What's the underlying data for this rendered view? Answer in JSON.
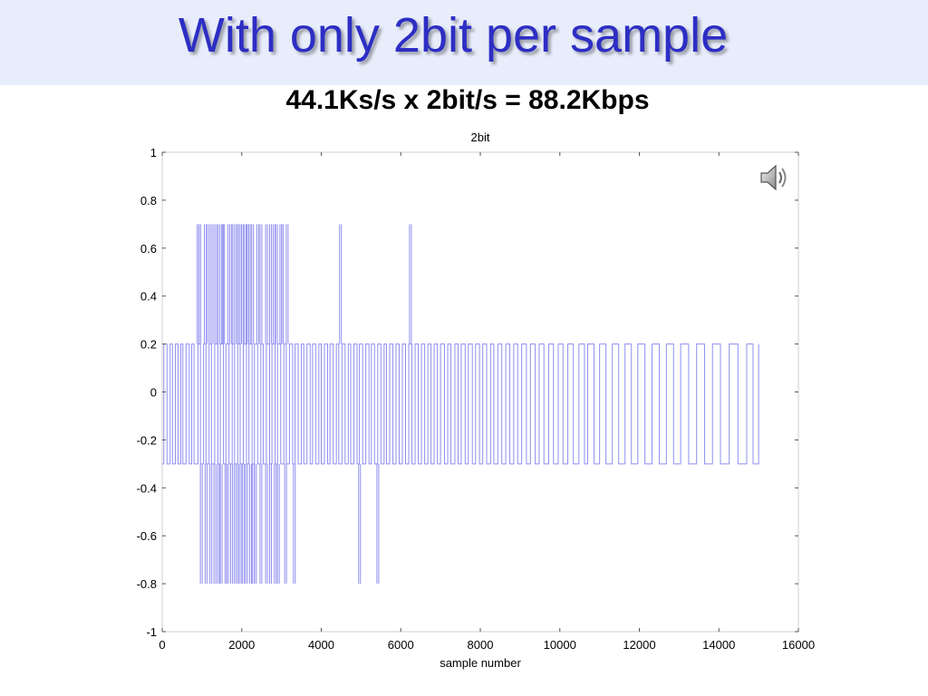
{
  "slide": {
    "title": "With only 2bit per sample",
    "subtitle": "44.1Ks/s x 2bit/s = 88.2Kbps",
    "banner_color": "#e8edfb",
    "title_color": "#2d2ec4"
  },
  "speaker": {
    "icon": "speaker-icon"
  },
  "chart_data": {
    "type": "line",
    "title": "2bit",
    "xlabel": "sample number",
    "ylabel": "",
    "xlim": [
      0,
      16000
    ],
    "ylim": [
      -1,
      1
    ],
    "xticks": [
      0,
      2000,
      4000,
      6000,
      8000,
      10000,
      12000,
      14000,
      16000
    ],
    "xtick_labels": [
      "0",
      "2000",
      "4000",
      "6000",
      "8000",
      "10000",
      "12000",
      "14000",
      "16000"
    ],
    "yticks": [
      1,
      0.8,
      0.6,
      0.4,
      0.2,
      0,
      -0.2,
      -0.4,
      -0.6,
      -0.8,
      -1
    ],
    "ytick_labels": [
      "1",
      "0.8",
      "0.6",
      "0.4",
      "0.2",
      "0",
      "-0.2",
      "-0.4",
      "-0.6",
      "-0.8",
      "-1"
    ],
    "grid": false,
    "series_color": "#8f8ff0",
    "quantization_levels": [
      0.7,
      0.2,
      -0.3,
      -0.8
    ],
    "series": [
      {
        "x_start": 0,
        "x_end": 15000,
        "baseline_high": 0.2,
        "baseline_low": -0.3,
        "transitions_x": [
          40,
          120,
          200,
          260,
          330,
          400,
          470,
          520,
          600,
          680,
          740,
          800,
          900,
          960,
          1040,
          1100,
          1180,
          1240,
          1320,
          1400,
          1460,
          1540,
          1600,
          1680,
          1760,
          1820,
          1900,
          1960,
          2040,
          2120,
          2180,
          2260,
          2320,
          2400,
          2480,
          2540,
          2620,
          2700,
          2760,
          2840,
          2900,
          2980,
          3060,
          3120,
          3200,
          3280,
          3340,
          3420,
          3500,
          3560,
          3640,
          3720,
          3780,
          3860,
          3940,
          4000,
          4080,
          4160,
          4220,
          4300,
          4380,
          4440,
          4520,
          4600,
          4680,
          4740,
          4820,
          4900,
          4960,
          5040,
          5120,
          5200,
          5260,
          5340,
          5420,
          5500,
          5580,
          5640,
          5720,
          5800,
          5880,
          5960,
          6040,
          6120,
          6200,
          6280,
          6360,
          6440,
          6520,
          6600,
          6680,
          6760,
          6840,
          6920,
          7000,
          7100,
          7180,
          7260,
          7360,
          7440,
          7520,
          7620,
          7700,
          7800,
          7880,
          7980,
          8060,
          8160,
          8260,
          8340,
          8440,
          8540,
          8640,
          8740,
          8840,
          8940,
          9040,
          9160,
          9260,
          9380,
          9480,
          9600,
          9720,
          9840,
          9960,
          10080,
          10200,
          10340,
          10480,
          10620,
          10700,
          10860,
          11000,
          11160,
          11320,
          11480,
          11640,
          11800,
          11960,
          12140,
          12320,
          12500,
          12680,
          12860,
          13040,
          13240,
          13440,
          13640,
          13840,
          14040,
          14260,
          14480,
          14700,
          14860,
          15000
        ],
        "spikes_up_x": [
          880,
          920,
          1060,
          1140,
          1230,
          1320,
          1400,
          1490,
          1520,
          1650,
          1700,
          1760,
          1850,
          1890,
          1940,
          2000,
          2060,
          2130,
          2170,
          2250,
          2380,
          2460,
          2600,
          2700,
          2790,
          2850,
          2960,
          3000,
          3120,
          4460,
          6220
        ],
        "spike_up_value": 0.7,
        "spikes_down_x": [
          960,
          1080,
          1200,
          1300,
          1390,
          1460,
          1580,
          1620,
          1720,
          1810,
          1860,
          1940,
          2020,
          2100,
          2200,
          2270,
          2320,
          2460,
          2600,
          2700,
          2820,
          2900,
          3080,
          3300,
          4940,
          5400
        ],
        "spike_down_value": -0.8
      }
    ]
  }
}
